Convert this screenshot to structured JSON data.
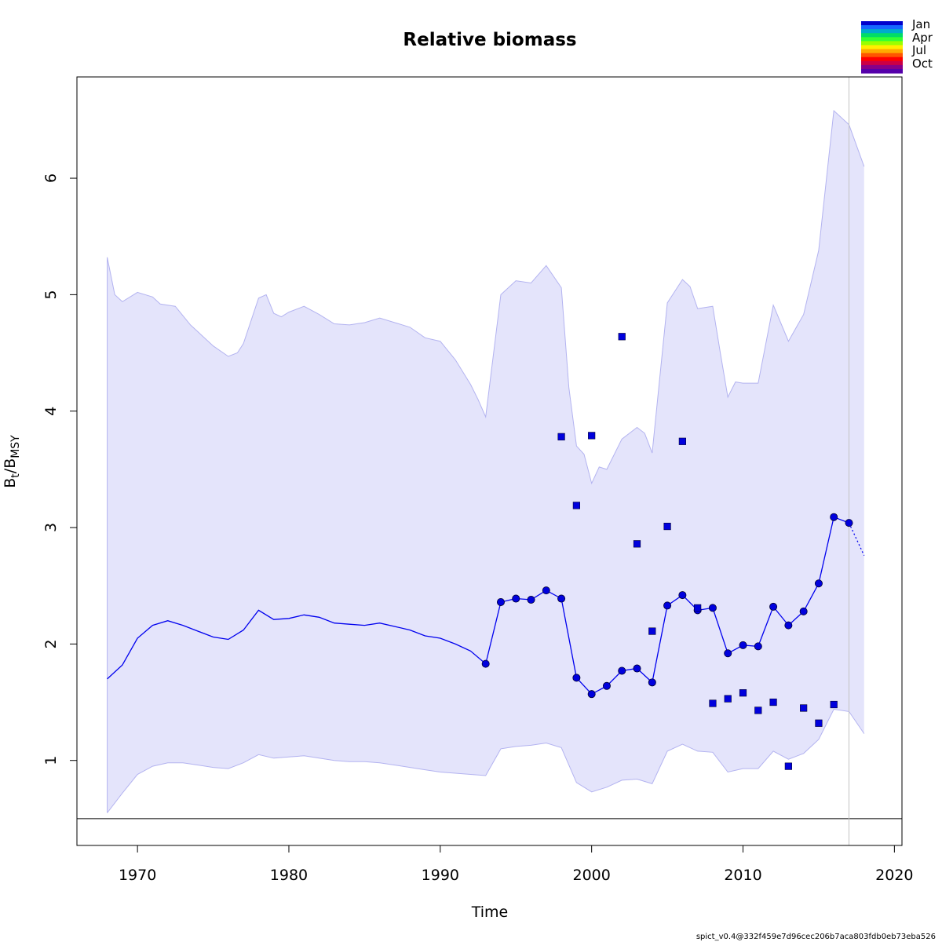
{
  "chart_data": {
    "type": "line",
    "title": "Relative biomass",
    "xlabel": "Time",
    "ylabel_main": "B",
    "ylabel_sub1": "t",
    "ylabel_sep": "/B",
    "ylabel_sub2": "MSY",
    "xlim": [
      1966,
      2020.5
    ],
    "ylim": [
      0.27,
      6.87
    ],
    "x_ticks": [
      1970,
      1980,
      1990,
      2000,
      2010,
      2020
    ],
    "y_ticks": [
      1,
      2,
      3,
      4,
      5,
      6
    ],
    "grid": false,
    "reference_line_y": 0.5,
    "vertical_line_x": 2017,
    "legend_labels": [
      "Jan",
      "Apr",
      "Jul",
      "Oct"
    ],
    "legend_colors": [
      "#0000cc",
      "#1566ff",
      "#00aacc",
      "#00dd66",
      "#33ff33",
      "#99ff00",
      "#ffee00",
      "#ffaa00",
      "#ff5500",
      "#ff0000",
      "#cc0044",
      "#880088",
      "#5500aa"
    ],
    "colors": {
      "line": "#0000ee",
      "band_fill": "#e4e4fb",
      "band_edge": "#b3b3f0",
      "point": "#0000dd"
    },
    "footer": "spict_v0.4@332f459e7d96cec206b7aca803fdb0eb73eba526",
    "estimate": [
      [
        1968,
        1.7
      ],
      [
        1969,
        1.82
      ],
      [
        1970,
        2.05
      ],
      [
        1971,
        2.16
      ],
      [
        1972,
        2.2
      ],
      [
        1973,
        2.16
      ],
      [
        1974,
        2.11
      ],
      [
        1975,
        2.06
      ],
      [
        1976,
        2.04
      ],
      [
        1977,
        2.12
      ],
      [
        1978,
        2.29
      ],
      [
        1979,
        2.21
      ],
      [
        1980,
        2.22
      ],
      [
        1981,
        2.25
      ],
      [
        1982,
        2.23
      ],
      [
        1983,
        2.18
      ],
      [
        1984,
        2.17
      ],
      [
        1985,
        2.16
      ],
      [
        1986,
        2.18
      ],
      [
        1987,
        2.15
      ],
      [
        1988,
        2.12
      ],
      [
        1989,
        2.07
      ],
      [
        1990,
        2.05
      ],
      [
        1991,
        2.0
      ],
      [
        1992,
        1.94
      ],
      [
        1993,
        1.83
      ],
      [
        1994,
        2.36
      ],
      [
        1995,
        2.39
      ],
      [
        1996,
        2.38
      ],
      [
        1997,
        2.46
      ],
      [
        1998,
        2.39
      ],
      [
        1999,
        1.71
      ],
      [
        2000,
        1.57
      ],
      [
        2001,
        1.64
      ],
      [
        2002,
        1.77
      ],
      [
        2003,
        1.79
      ],
      [
        2004,
        1.67
      ],
      [
        2005,
        2.33
      ],
      [
        2006,
        2.42
      ],
      [
        2007,
        2.29
      ],
      [
        2008,
        2.31
      ],
      [
        2009,
        1.92
      ],
      [
        2010,
        1.99
      ],
      [
        2011,
        1.98
      ],
      [
        2012,
        2.32
      ],
      [
        2013,
        2.16
      ],
      [
        2014,
        2.28
      ],
      [
        2015,
        2.52
      ],
      [
        2016,
        3.09
      ],
      [
        2017,
        3.04
      ]
    ],
    "forecast": [
      [
        2017,
        3.04
      ],
      [
        2018,
        2.76
      ]
    ],
    "upper_ci": [
      [
        1968,
        5.32
      ],
      [
        1968.5,
        5.0
      ],
      [
        1969,
        4.94
      ],
      [
        1970,
        5.02
      ],
      [
        1971,
        4.98
      ],
      [
        1971.5,
        4.92
      ],
      [
        1972.5,
        4.9
      ],
      [
        1973.5,
        4.74
      ],
      [
        1975,
        4.56
      ],
      [
        1976,
        4.47
      ],
      [
        1976.6,
        4.5
      ],
      [
        1977,
        4.58
      ],
      [
        1978,
        4.97
      ],
      [
        1978.5,
        5.0
      ],
      [
        1979,
        4.84
      ],
      [
        1979.5,
        4.81
      ],
      [
        1980,
        4.85
      ],
      [
        1981,
        4.9
      ],
      [
        1982,
        4.83
      ],
      [
        1983,
        4.75
      ],
      [
        1984,
        4.74
      ],
      [
        1985,
        4.76
      ],
      [
        1986,
        4.8
      ],
      [
        1987,
        4.76
      ],
      [
        1988,
        4.72
      ],
      [
        1989,
        4.63
      ],
      [
        1990,
        4.6
      ],
      [
        1991,
        4.44
      ],
      [
        1992,
        4.23
      ],
      [
        1992.5,
        4.1
      ],
      [
        1993,
        3.95
      ],
      [
        1994,
        5.0
      ],
      [
        1995,
        5.12
      ],
      [
        1996,
        5.1
      ],
      [
        1997,
        5.25
      ],
      [
        1998,
        5.06
      ],
      [
        1998.5,
        4.2
      ],
      [
        1999,
        3.7
      ],
      [
        1999.5,
        3.63
      ],
      [
        2000,
        3.38
      ],
      [
        2000.5,
        3.52
      ],
      [
        2001,
        3.5
      ],
      [
        2002,
        3.76
      ],
      [
        2003,
        3.86
      ],
      [
        2003.5,
        3.81
      ],
      [
        2004,
        3.64
      ],
      [
        2005,
        4.93
      ],
      [
        2006,
        5.13
      ],
      [
        2006.5,
        5.07
      ],
      [
        2007,
        4.88
      ],
      [
        2008,
        4.9
      ],
      [
        2008.5,
        4.5
      ],
      [
        2009,
        4.12
      ],
      [
        2009.5,
        4.25
      ],
      [
        2010,
        4.24
      ],
      [
        2011,
        4.24
      ],
      [
        2012,
        4.91
      ],
      [
        2013,
        4.6
      ],
      [
        2014,
        4.83
      ],
      [
        2015,
        5.38
      ],
      [
        2016,
        6.58
      ],
      [
        2017,
        6.46
      ],
      [
        2018,
        6.1
      ]
    ],
    "lower_ci": [
      [
        1968,
        0.55
      ],
      [
        1969,
        0.72
      ],
      [
        1970,
        0.88
      ],
      [
        1971,
        0.95
      ],
      [
        1972,
        0.98
      ],
      [
        1973,
        0.98
      ],
      [
        1974,
        0.96
      ],
      [
        1975,
        0.94
      ],
      [
        1976,
        0.93
      ],
      [
        1977,
        0.98
      ],
      [
        1978,
        1.05
      ],
      [
        1979,
        1.02
      ],
      [
        1980,
        1.03
      ],
      [
        1981,
        1.04
      ],
      [
        1982,
        1.02
      ],
      [
        1983,
        1.0
      ],
      [
        1984,
        0.99
      ],
      [
        1985,
        0.99
      ],
      [
        1986,
        0.98
      ],
      [
        1987,
        0.96
      ],
      [
        1988,
        0.94
      ],
      [
        1989,
        0.92
      ],
      [
        1990,
        0.9
      ],
      [
        1991,
        0.89
      ],
      [
        1992,
        0.88
      ],
      [
        1993,
        0.87
      ],
      [
        1994,
        1.1
      ],
      [
        1995,
        1.12
      ],
      [
        1996,
        1.13
      ],
      [
        1997,
        1.15
      ],
      [
        1998,
        1.11
      ],
      [
        1999,
        0.81
      ],
      [
        2000,
        0.73
      ],
      [
        2001,
        0.77
      ],
      [
        2002,
        0.83
      ],
      [
        2003,
        0.84
      ],
      [
        2004,
        0.8
      ],
      [
        2005,
        1.08
      ],
      [
        2006,
        1.14
      ],
      [
        2007,
        1.08
      ],
      [
        2008,
        1.07
      ],
      [
        2009,
        0.9
      ],
      [
        2010,
        0.93
      ],
      [
        2011,
        0.93
      ],
      [
        2012,
        1.08
      ],
      [
        2013,
        1.01
      ],
      [
        2014,
        1.06
      ],
      [
        2015,
        1.18
      ],
      [
        2016,
        1.44
      ],
      [
        2017,
        1.42
      ],
      [
        2018,
        1.23
      ]
    ],
    "observations": [
      [
        1998,
        3.78
      ],
      [
        1999,
        3.19
      ],
      [
        2000,
        3.79
      ],
      [
        2002,
        4.64
      ],
      [
        2003,
        2.86
      ],
      [
        2004,
        2.11
      ],
      [
        2005,
        3.01
      ],
      [
        2006,
        3.74
      ],
      [
        2007,
        2.31
      ],
      [
        2008,
        1.49
      ],
      [
        2009,
        1.53
      ],
      [
        2010,
        1.58
      ],
      [
        2011,
        1.43
      ],
      [
        2012,
        1.5
      ],
      [
        2013,
        0.95
      ],
      [
        2014,
        1.45
      ],
      [
        2015,
        1.32
      ],
      [
        2016,
        1.48
      ]
    ]
  }
}
